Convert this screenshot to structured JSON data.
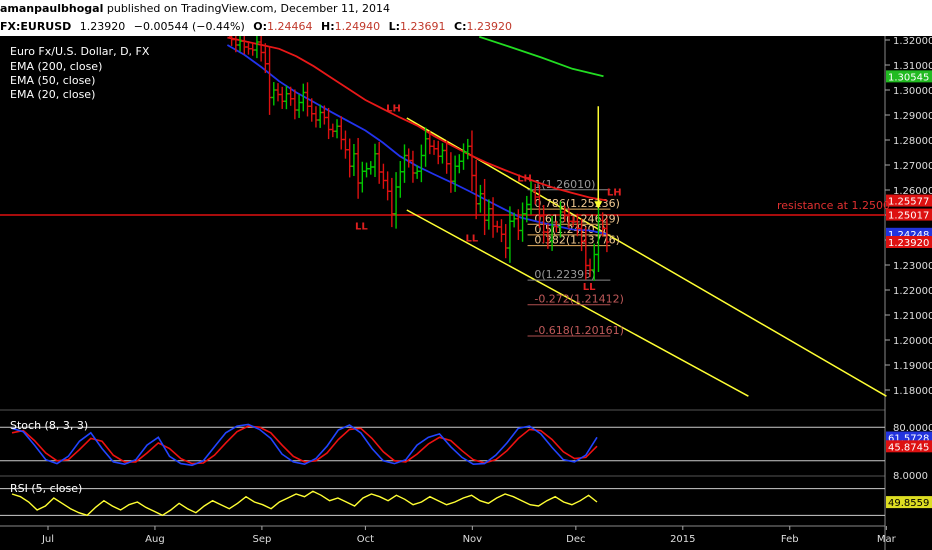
{
  "header": {
    "author": "amanpaulbhogal",
    "published_text": "published on TradingView.com, December 11, 2014"
  },
  "quote": {
    "symbol": "FX:EURUSD",
    "last": "1.23920",
    "change": "−0.00544 (−0.44%)",
    "o_label": "O:",
    "o_value": "1.24464",
    "h_label": "H:",
    "h_value": "1.24940",
    "l_label": "L:",
    "l_value": "1.23691",
    "c_label": "C:",
    "c_value": "1.23920"
  },
  "colors": {
    "background": "#000000",
    "up_bar": "#00c800",
    "down_bar": "#dd1010",
    "ema20": "#2233ee",
    "ema50": "#e81818",
    "ema200": "#22dd22",
    "channel": "#ffff33",
    "fib": "#e8b060",
    "stoch_k": "#2244ff",
    "stoch_d": "#ee1111",
    "rsi": "#ffff33"
  },
  "legend": {
    "title": "Euro Fx/U.S. Dollar, D, FX",
    "ema200": "EMA (200, close)",
    "ema50": "EMA (50, close)",
    "ema20": "EMA (20, close)"
  },
  "chart_data": {
    "type": "candlestick",
    "x_ticks": [
      "Jul",
      "Aug",
      "Sep",
      "Oct",
      "Nov",
      "Dec",
      "2015",
      "Feb",
      "Mar"
    ],
    "y_ticks": [
      "1.32000",
      "1.31000",
      "1.30000",
      "1.29000",
      "1.28000",
      "1.27000",
      "1.26000",
      "1.25000",
      "1.24000",
      "1.23000",
      "1.22000",
      "1.21000",
      "1.20000",
      "1.19000",
      "1.18000"
    ],
    "ylim": [
      1.174,
      1.322
    ],
    "price_badges": [
      {
        "label": "1.30545",
        "value": 1.30545,
        "color": "#22bb22"
      },
      {
        "label": "1.25577",
        "value": 1.25577,
        "color": "#dd1111"
      },
      {
        "label": "1.25017",
        "value": 1.25017,
        "color": "#dd1111"
      },
      {
        "label": "1.24248",
        "value": 1.24248,
        "color": "#2233dd"
      },
      {
        "label": "1.23920",
        "value": 1.2392,
        "color": "#dd1111"
      }
    ],
    "closes": [
      1.3215,
      1.3202,
      1.318,
      1.3195,
      1.3172,
      1.3165,
      1.316,
      1.3192,
      1.315,
      1.3105,
      1.297,
      1.3,
      1.2982,
      1.2955,
      1.2985,
      1.2965,
      1.292,
      1.295,
      1.299,
      1.2935,
      1.2905,
      1.288,
      1.291,
      1.289,
      1.2842,
      1.2835,
      1.2855,
      1.2802,
      1.2761,
      1.2695,
      1.2745,
      1.2628,
      1.2675,
      1.2685,
      1.2692,
      1.2745,
      1.2672,
      1.2638,
      1.2595,
      1.2505,
      1.2612,
      1.2673,
      1.2738,
      1.2718,
      1.2668,
      1.2675,
      1.2738,
      1.2805,
      1.2775,
      1.2765,
      1.2735,
      1.2758,
      1.2705,
      1.2635,
      1.2695,
      1.2715,
      1.2752,
      1.2775,
      1.2658,
      1.2545,
      1.2585,
      1.2479,
      1.2525,
      1.2455,
      1.2452,
      1.2423,
      1.2368,
      1.2475,
      1.2485,
      1.2438,
      1.2505,
      1.2542,
      1.2595,
      1.2572,
      1.2496,
      1.2432,
      1.2398,
      1.2455,
      1.2452,
      1.2512,
      1.2498,
      1.2475,
      1.2474,
      1.2446,
      1.2395,
      1.2298,
      1.228,
      1.2342,
      1.2478,
      1.2446,
      1.2392
    ],
    "ema20": [
      1.318,
      1.314,
      1.309,
      1.3035,
      1.299,
      1.2952,
      1.2913,
      1.2875,
      1.2838,
      1.279,
      1.2735,
      1.2695,
      1.2662,
      1.263,
      1.2596,
      1.256,
      1.2525,
      1.249,
      1.2473,
      1.2457,
      1.2442,
      1.2438,
      1.2424
    ],
    "ema50": [
      1.321,
      1.3195,
      1.318,
      1.3165,
      1.3135,
      1.3095,
      1.305,
      1.3005,
      1.296,
      1.2925,
      1.289,
      1.2858,
      1.2815,
      1.2778,
      1.2742,
      1.271,
      1.2682,
      1.2655,
      1.263,
      1.2607,
      1.2588,
      1.257,
      1.2558
    ],
    "ema200": [
      1.3213,
      1.3172,
      1.313,
      1.3085,
      1.3055
    ],
    "channel_upper_label": "",
    "annotations": {
      "swing_labels": [
        "LH",
        "LL",
        "LL",
        "LL",
        "LH",
        "LL",
        "LH"
      ],
      "resistance_label": "resistance at 1.2500",
      "resistance_value": 1.25
    },
    "fibonacci": [
      {
        "label": "1(1.26010)",
        "value": 1.2601
      },
      {
        "label": "0.786(1.25236)",
        "value": 1.25236
      },
      {
        "label": "0.618(1.24629)",
        "value": 1.24629
      },
      {
        "label": "0.5(1.24203)",
        "value": 1.24203
      },
      {
        "label": "0.382(1.23776)",
        "value": 1.23776
      },
      {
        "label": "0(1.22395)",
        "value": 1.22395
      },
      {
        "label": "-0.272(1.21412)",
        "value": 1.21412
      },
      {
        "label": "-0.618(1.20161)",
        "value": 1.20161
      }
    ],
    "stoch": {
      "label": "Stoch (8, 3, 3)",
      "y_ticks": [
        "80.0000",
        "8.0000"
      ],
      "badges": [
        {
          "label": "61.5728",
          "value": 61.5728,
          "color": "#2233dd"
        },
        {
          "label": "45.8745",
          "value": 45.8745,
          "color": "#dd1111"
        }
      ],
      "k": [
        78,
        72,
        48,
        22,
        15,
        28,
        55,
        70,
        42,
        18,
        14,
        22,
        48,
        62,
        28,
        15,
        12,
        20,
        45,
        70,
        82,
        85,
        76,
        60,
        32,
        18,
        14,
        24,
        46,
        75,
        84,
        70,
        42,
        20,
        15,
        22,
        48,
        62,
        68,
        45,
        26,
        14,
        15,
        30,
        52,
        78,
        82,
        68,
        44,
        22,
        18,
        30,
        62
      ],
      "d": [
        70,
        74,
        56,
        34,
        20,
        22,
        40,
        60,
        55,
        30,
        18,
        18,
        34,
        52,
        42,
        24,
        15,
        16,
        30,
        52,
        72,
        82,
        80,
        70,
        48,
        28,
        18,
        20,
        34,
        58,
        76,
        78,
        60,
        36,
        20,
        18,
        32,
        50,
        62,
        56,
        38,
        22,
        16,
        22,
        38,
        60,
        76,
        74,
        58,
        36,
        24,
        26,
        46
      ]
    },
    "rsi": {
      "label": "RSI (5, close)",
      "y_ticks": [
        "49.8559"
      ],
      "badges": [
        {
          "label": "49.8559",
          "value": 49.8559,
          "color": "#dddd22"
        }
      ],
      "values": [
        62,
        58,
        50,
        38,
        44,
        56,
        48,
        40,
        34,
        30,
        42,
        52,
        44,
        38,
        46,
        50,
        42,
        36,
        30,
        38,
        48,
        40,
        34,
        44,
        52,
        46,
        40,
        48,
        58,
        50,
        46,
        40,
        50,
        56,
        62,
        58,
        66,
        60,
        52,
        56,
        50,
        44,
        56,
        62,
        58,
        52,
        60,
        54,
        46,
        50,
        58,
        52,
        46,
        50,
        56,
        60,
        52,
        48,
        56,
        62,
        58,
        52,
        46,
        44,
        52,
        58,
        50,
        46,
        52,
        60,
        50
      ]
    }
  }
}
